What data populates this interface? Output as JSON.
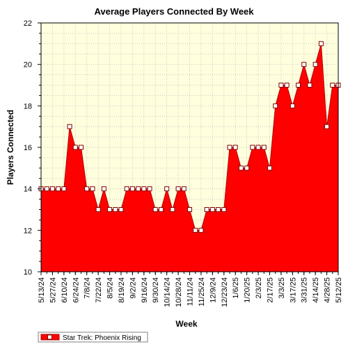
{
  "chart_data": {
    "type": "area",
    "title": "Average Players Connected By Week",
    "xlabel": "Week",
    "ylabel": "Players Connected",
    "ylim": [
      10,
      22
    ],
    "yticks": [
      10,
      12,
      14,
      16,
      18,
      20,
      22
    ],
    "grid": true,
    "legend_position": "bottom-left",
    "x": [
      "5/13/24",
      "5/20/24",
      "5/27/24",
      "6/3/24",
      "6/10/24",
      "6/17/24",
      "6/24/24",
      "7/1/24",
      "7/8/24",
      "7/15/24",
      "7/22/24",
      "7/29/24",
      "8/5/24",
      "8/12/24",
      "8/19/24",
      "8/26/24",
      "9/2/24",
      "9/9/24",
      "9/16/24",
      "9/23/24",
      "9/30/24",
      "10/7/24",
      "10/14/24",
      "10/21/24",
      "10/28/24",
      "11/4/24",
      "11/11/24",
      "11/18/24",
      "11/25/24",
      "12/2/24",
      "12/9/24",
      "12/16/24",
      "12/23/24",
      "12/30/24",
      "1/6/25",
      "1/13/25",
      "1/20/25",
      "1/27/25",
      "2/3/25",
      "2/10/25",
      "2/17/25",
      "2/24/25",
      "3/3/25",
      "3/10/25",
      "3/17/25",
      "3/24/25",
      "3/31/25",
      "4/7/25",
      "4/14/25",
      "4/21/25",
      "4/28/25",
      "5/5/25",
      "5/12/25"
    ],
    "x_tick_labels": [
      "5/13/24",
      "5/27/24",
      "6/10/24",
      "6/24/24",
      "7/8/24",
      "7/22/24",
      "8/5/24",
      "8/19/24",
      "9/2/24",
      "9/16/24",
      "9/30/24",
      "10/14/24",
      "10/28/24",
      "11/11/24",
      "11/25/24",
      "12/9/24",
      "12/23/24",
      "1/6/25",
      "1/20/25",
      "2/3/25",
      "2/17/25",
      "3/3/25",
      "3/17/25",
      "3/31/25",
      "4/14/25",
      "4/28/25",
      "5/12/25"
    ],
    "series": [
      {
        "name": "Star Trek: Phoenix Rising",
        "color": "#ff0000",
        "values": [
          14,
          14,
          14,
          14,
          14,
          17,
          16,
          16,
          14,
          14,
          13,
          14,
          13,
          13,
          13,
          14,
          14,
          14,
          14,
          14,
          13,
          13,
          14,
          13,
          14,
          14,
          13,
          12,
          12,
          13,
          13,
          13,
          13,
          16,
          16,
          15,
          15,
          16,
          16,
          16,
          15,
          18,
          19,
          19,
          18,
          19,
          20,
          19,
          20,
          21,
          17,
          19,
          19
        ]
      }
    ],
    "colors": {
      "plot_background": "#ffffdd",
      "area_fill": "#ff0000",
      "line": "#b00000",
      "grid": "#c8c8c8"
    }
  }
}
